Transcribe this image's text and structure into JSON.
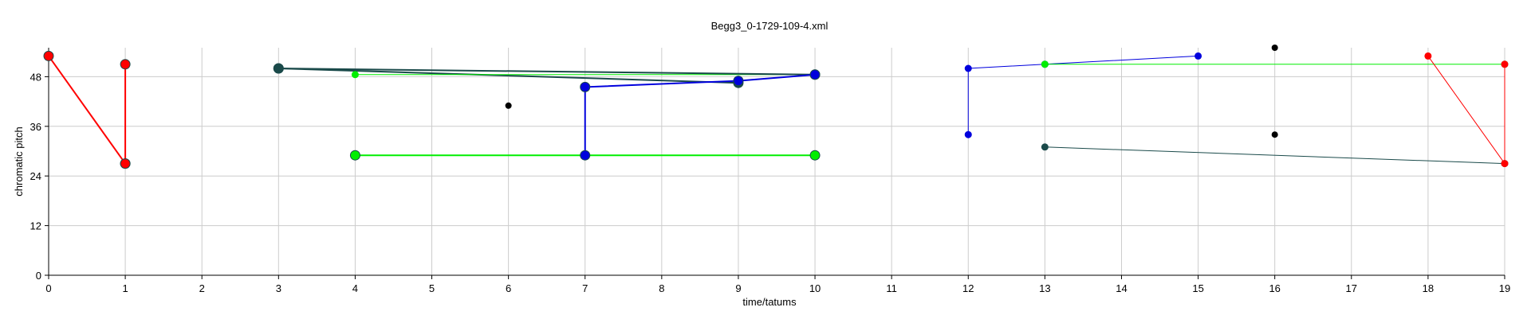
{
  "chart_data": {
    "type": "line",
    "title": "Begg3_0-1729-109-4.xml",
    "xlabel": "time/tatums",
    "ylabel": "chromatic pitch",
    "xlim": [
      0,
      19
    ],
    "ylim": [
      0,
      55
    ],
    "x_ticks": [
      "0",
      "1",
      "2",
      "3",
      "4",
      "5",
      "6",
      "7",
      "8",
      "9",
      "10",
      "11",
      "12",
      "13",
      "14",
      "15",
      "16",
      "17",
      "18",
      "19"
    ],
    "y_ticks": [
      "0",
      "12",
      "24",
      "36",
      "48"
    ],
    "grid": true,
    "series": [
      {
        "color": "#ff0000",
        "marker": "large",
        "points": [
          [
            0,
            53
          ],
          [
            1,
            27
          ]
        ]
      },
      {
        "color": "#ff0000",
        "marker": "large",
        "points": [
          [
            1,
            27
          ],
          [
            1,
            51
          ]
        ]
      },
      {
        "color": "#1a4a4a",
        "marker": "large",
        "points": [
          [
            3,
            50
          ],
          [
            9,
            46.5
          ]
        ]
      },
      {
        "color": "#00ee00",
        "marker": "small",
        "points": [
          [
            4,
            48.5
          ],
          [
            10,
            48.5
          ]
        ]
      },
      {
        "color": "#1a4a4a",
        "marker": "large",
        "points": [
          [
            3,
            50
          ],
          [
            10,
            48.5
          ]
        ]
      },
      {
        "color": "#00ee00",
        "marker": "large",
        "points": [
          [
            4,
            29
          ],
          [
            10,
            29
          ]
        ]
      },
      {
        "color": "#0000dd",
        "marker": "large",
        "points": [
          [
            7,
            29
          ],
          [
            7,
            45.5
          ],
          [
            9,
            47
          ],
          [
            10,
            48.5
          ]
        ]
      },
      {
        "color": "#0000dd",
        "marker": "small",
        "points": [
          [
            12,
            34
          ],
          [
            12,
            50
          ],
          [
            13,
            51
          ],
          [
            15,
            53
          ]
        ]
      },
      {
        "color": "#00ee00",
        "marker": "small",
        "points": [
          [
            13,
            51
          ],
          [
            19,
            51
          ]
        ]
      },
      {
        "color": "#1a4a4a",
        "marker": "small",
        "points": [
          [
            13,
            31
          ],
          [
            19,
            27
          ]
        ]
      },
      {
        "color": "#ff0000",
        "marker": "small",
        "points": [
          [
            18,
            53
          ],
          [
            19,
            27
          ],
          [
            19,
            51
          ]
        ]
      }
    ],
    "isolated_points": [
      {
        "color": "#000000",
        "x": 6,
        "y": 41
      },
      {
        "color": "#000000",
        "x": 16,
        "y": 55
      },
      {
        "color": "#000000",
        "x": 16,
        "y": 34
      }
    ]
  }
}
